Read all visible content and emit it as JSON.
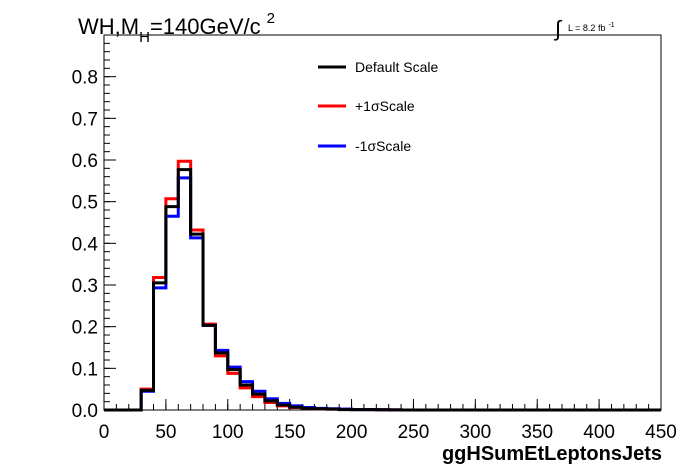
{
  "header": {
    "title_main": "WH,M",
    "title_sub": "H",
    "title_rest": "=140GeV/c",
    "title_sup": "2",
    "lumi_symbol": "∫",
    "lumi_text": "L = 8.2 fb",
    "lumi_sup": "-1"
  },
  "chart_data": {
    "type": "line",
    "style": "step-histogram",
    "xlabel": "ggHSumEtLeptonsJets",
    "ylabel": "",
    "xlim": [
      0,
      450
    ],
    "ylim": [
      0,
      0.9
    ],
    "x_ticks": [
      0,
      50,
      100,
      150,
      200,
      250,
      300,
      350,
      400,
      450
    ],
    "x_tick_labels": [
      "0",
      "50",
      "100",
      "150",
      "200",
      "250",
      "300",
      "350",
      "400",
      "450"
    ],
    "y_ticks": [
      0,
      0.1,
      0.2,
      0.3,
      0.4,
      0.5,
      0.6,
      0.7,
      0.8
    ],
    "y_tick_labels": [
      "0.0",
      "0.1",
      "0.2",
      "0.3",
      "0.4",
      "0.5",
      "0.6",
      "0.7",
      "0.8"
    ],
    "legend_position": "top-center",
    "bin_width": 10,
    "bin_edges_start": 0,
    "series": [
      {
        "name": "Default Scale",
        "color": "#000000",
        "values": [
          0,
          0,
          0,
          0.047,
          0.305,
          0.488,
          0.577,
          0.422,
          0.203,
          0.137,
          0.097,
          0.06,
          0.038,
          0.022,
          0.012,
          0.007,
          0.004,
          0.003,
          0.002,
          0.001,
          0.001,
          0.001,
          0.0005,
          0.0003,
          0,
          0,
          0,
          0,
          0,
          0,
          0,
          0,
          0,
          0,
          0,
          0,
          0,
          0,
          0,
          0,
          0,
          0,
          0,
          0,
          0
        ]
      },
      {
        "name": "+1σScale",
        "color": "#ff0000",
        "values": [
          0,
          0,
          0,
          0.05,
          0.318,
          0.507,
          0.597,
          0.432,
          0.206,
          0.13,
          0.088,
          0.053,
          0.032,
          0.018,
          0.01,
          0.006,
          0.004,
          0.003,
          0.002,
          0.002,
          0.001,
          0.001,
          0.0005,
          0.0003,
          0,
          0,
          0,
          0,
          0,
          0,
          0,
          0,
          0,
          0,
          0,
          0,
          0,
          0,
          0,
          0,
          0,
          0,
          0,
          0,
          0
        ]
      },
      {
        "name": "-1σScale",
        "color": "#0000ff",
        "values": [
          0,
          0,
          0,
          0.045,
          0.293,
          0.465,
          0.557,
          0.413,
          0.203,
          0.143,
          0.103,
          0.068,
          0.045,
          0.027,
          0.016,
          0.01,
          0.006,
          0.004,
          0.003,
          0.002,
          0.001,
          0.001,
          0.0005,
          0.0003,
          0,
          0,
          0,
          0,
          0,
          0,
          0,
          0,
          0,
          0,
          0,
          0,
          0,
          0,
          0,
          0,
          0,
          0,
          0,
          0,
          0
        ]
      }
    ]
  }
}
